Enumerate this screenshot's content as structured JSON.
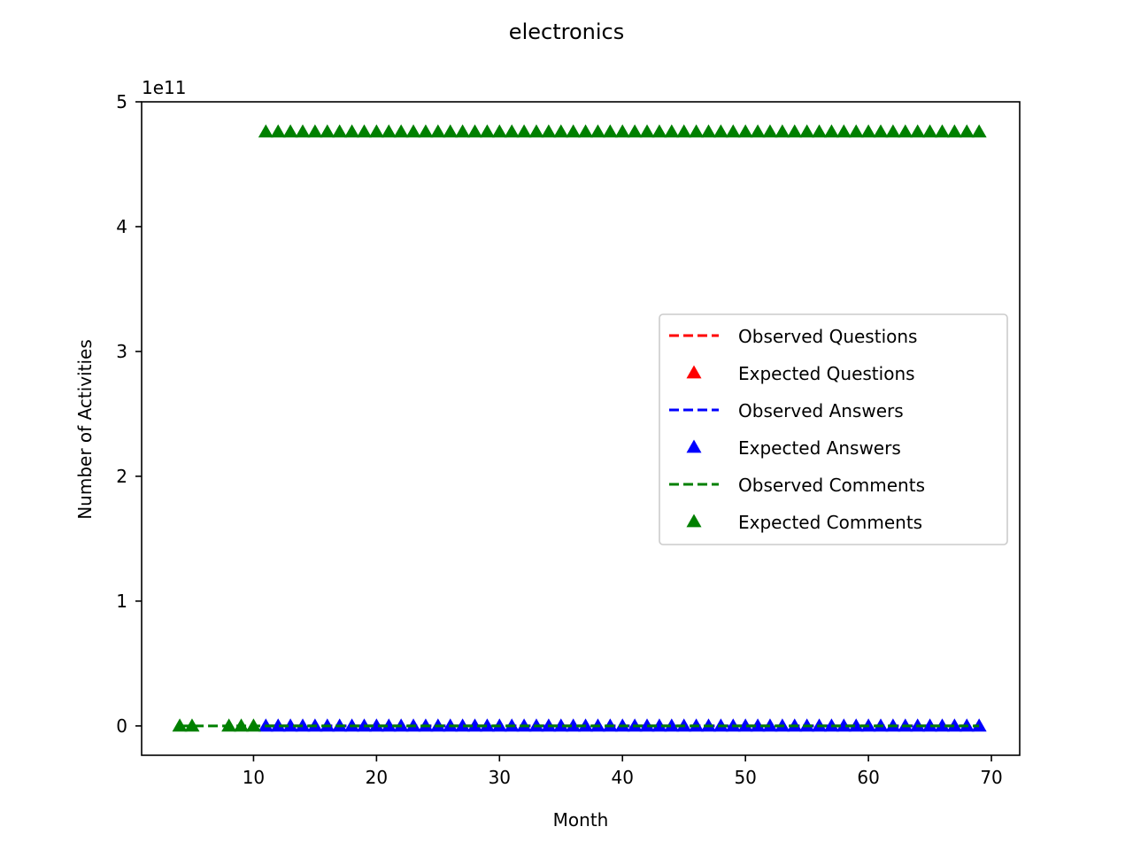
{
  "chart_data": {
    "type": "line",
    "title": "electronics",
    "xlabel": "Month",
    "ylabel": "Number of Activities",
    "offset_label": "1e11",
    "xlim": [
      0.9,
      72.3
    ],
    "ylim": [
      -0.235,
      5.0
    ],
    "xticks": [
      10,
      20,
      30,
      40,
      50,
      60,
      70
    ],
    "xtick_labels": [
      "10",
      "20",
      "30",
      "40",
      "50",
      "60",
      "70"
    ],
    "yticks": [
      0,
      1,
      2,
      3,
      4,
      5
    ],
    "ytick_labels": [
      "0",
      "1",
      "2",
      "3",
      "4",
      "5"
    ],
    "grid": false,
    "legend_position": "center-right",
    "series": [
      {
        "name": "Observed Questions",
        "style": "dashed-line",
        "color": "#ff0000",
        "x_start": 11,
        "x_end": 69,
        "y_constant": 0.0
      },
      {
        "name": "Expected Questions",
        "style": "triangle-markers",
        "color": "#ff0000",
        "x": [],
        "y_constant": 0.0
      },
      {
        "name": "Observed Answers",
        "style": "dashed-line",
        "color": "#0000ff",
        "x_start": 11,
        "x_end": 69,
        "y_constant": 0.0
      },
      {
        "name": "Expected Answers",
        "style": "triangle-markers",
        "color": "#0000ff",
        "x_start": 11,
        "x_end": 69,
        "y_constant": 0.0
      },
      {
        "name": "Observed Comments",
        "style": "dashed-line",
        "color": "#008000",
        "x_start": 4,
        "x_end": 69,
        "y_constant": 0.0
      },
      {
        "name": "Expected Comments",
        "style": "triangle-markers",
        "color": "#008000",
        "x": [
          4,
          5,
          8,
          9,
          10
        ],
        "y_constant": 0.0
      },
      {
        "name": "Expected Comments (high)",
        "style": "triangle-markers",
        "color": "#008000",
        "x_start": 11,
        "x_end": 69,
        "y_constant": 4.76,
        "in_legend": false
      }
    ]
  }
}
